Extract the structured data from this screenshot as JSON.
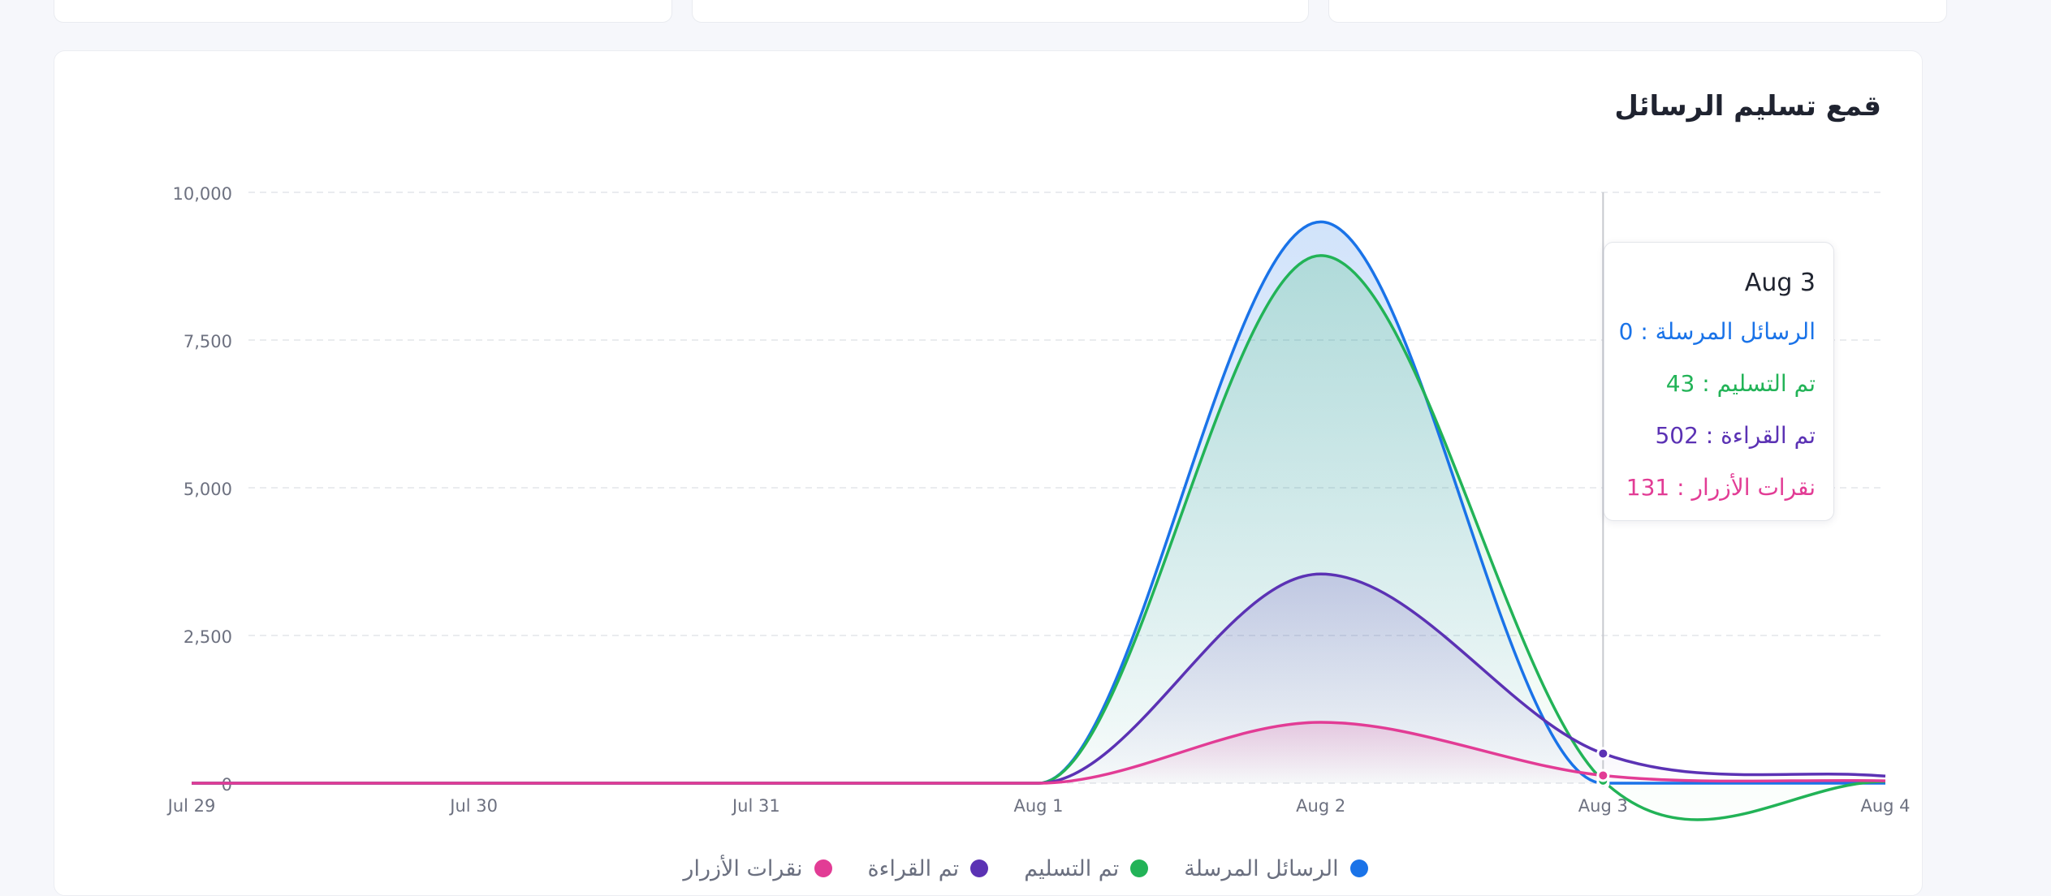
{
  "title": "قمع تسليم الرسائل",
  "chart_data": {
    "type": "area",
    "x": [
      "Jul 29",
      "Jul 30",
      "Jul 31",
      "Aug 1",
      "Aug 2",
      "Aug 3",
      "Aug 4"
    ],
    "ylim": [
      0,
      10000
    ],
    "y_ticks": [
      "0",
      "2,500",
      "5,000",
      "7,500",
      "10,000"
    ],
    "grid": true,
    "legend_position": "bottom",
    "series": [
      {
        "name": "الرسائل المرسلة",
        "color": "#1a73e8",
        "values": [
          0,
          0,
          0,
          0,
          9500,
          0,
          0
        ]
      },
      {
        "name": "تم التسليم",
        "color": "#22b357",
        "values": [
          0,
          0,
          0,
          0,
          8930,
          43,
          30
        ]
      },
      {
        "name": "تم القراءة",
        "color": "#5b32b4",
        "values": [
          0,
          0,
          0,
          0,
          3540,
          502,
          120
        ]
      },
      {
        "name": "نقرات الأزرار",
        "color": "#e23c95",
        "values": [
          0,
          0,
          0,
          0,
          1030,
          131,
          40
        ]
      }
    ]
  },
  "tooltip": {
    "title": "Aug 3",
    "rows": [
      {
        "label": "الرسائل المرسلة",
        "value": "0",
        "color": "#1a73e8"
      },
      {
        "label": "تم التسليم",
        "value": "43",
        "color": "#22b357"
      },
      {
        "label": "تم القراءة",
        "value": "502",
        "color": "#5b32b4"
      },
      {
        "label": "نقرات الأزرار",
        "value": "131",
        "color": "#e23c95"
      }
    ]
  },
  "legend": [
    {
      "label": "الرسائل المرسلة",
      "color": "#1a73e8"
    },
    {
      "label": "تم التسليم",
      "color": "#22b357"
    },
    {
      "label": "تم القراءة",
      "color": "#5b32b4"
    },
    {
      "label": "نقرات الأزرار",
      "color": "#e23c95"
    }
  ]
}
